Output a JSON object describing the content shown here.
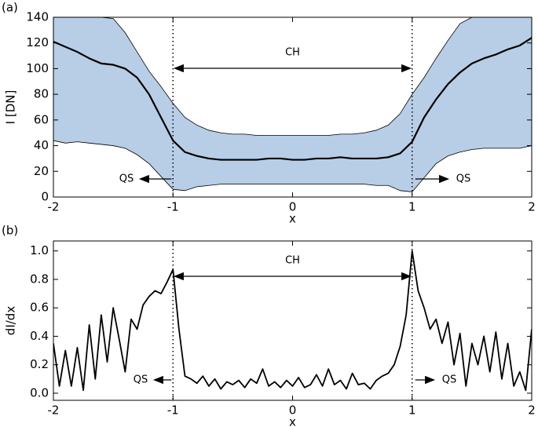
{
  "chart_data": [
    {
      "type": "band-line",
      "panel_label": "(a)",
      "x_label": "x",
      "y_label": "I [DN]",
      "x": [
        -2,
        -1.9,
        -1.8,
        -1.7,
        -1.6,
        -1.5,
        -1.4,
        -1.3,
        -1.2,
        -1.1,
        -1,
        -0.9,
        -0.8,
        -0.7,
        -0.6,
        -0.5,
        -0.4,
        -0.3,
        -0.2,
        -0.1,
        0,
        0.1,
        0.2,
        0.3,
        0.4,
        0.5,
        0.6,
        0.7,
        0.8,
        0.9,
        1,
        1.1,
        1.2,
        1.3,
        1.4,
        1.5,
        1.6,
        1.7,
        1.8,
        1.9,
        2
      ],
      "band": {
        "color": "#b8cde6",
        "upper": [
          140,
          140,
          140,
          140,
          140,
          139,
          128,
          113,
          98,
          86,
          73,
          62,
          56,
          52,
          50,
          49,
          49,
          48,
          48,
          48,
          48,
          48,
          48,
          48,
          49,
          49,
          50,
          52,
          56,
          65,
          80,
          93,
          108,
          122,
          135,
          140,
          140,
          140,
          140,
          140,
          140
        ],
        "lower": [
          44,
          42,
          43,
          42,
          41,
          40,
          38,
          33,
          26,
          16,
          6,
          5,
          8,
          9,
          10,
          10,
          10,
          10,
          10,
          10,
          10,
          10,
          10,
          10,
          10,
          10,
          10,
          9,
          9,
          5,
          4,
          15,
          26,
          32,
          35,
          37,
          38,
          38,
          38,
          38,
          40
        ]
      },
      "series": [
        {
          "color": "#000000",
          "values": [
            121,
            117,
            113,
            108,
            104,
            103,
            100,
            93,
            80,
            62,
            44,
            35,
            32,
            30,
            29,
            29,
            29,
            29,
            30,
            30,
            29,
            29,
            30,
            30,
            31,
            30,
            30,
            30,
            31,
            34,
            43,
            62,
            76,
            88,
            97,
            104,
            108,
            111,
            115,
            118,
            124
          ]
        }
      ],
      "vlines": [
        -1,
        1
      ],
      "annotations": [
        "CH",
        "QS",
        "QS"
      ],
      "xlim": [
        -2,
        2
      ],
      "xticks": [
        -2,
        -1,
        0,
        1,
        2
      ],
      "ylim": [
        0,
        140
      ],
      "yticks": [
        0,
        20,
        40,
        60,
        80,
        100,
        120,
        140
      ]
    },
    {
      "type": "line",
      "panel_label": "(b)",
      "x_label": "x",
      "y_label": "dI/dx",
      "x": [
        -2,
        -1.95,
        -1.9,
        -1.85,
        -1.8,
        -1.75,
        -1.7,
        -1.65,
        -1.6,
        -1.55,
        -1.5,
        -1.45,
        -1.4,
        -1.35,
        -1.3,
        -1.25,
        -1.2,
        -1.15,
        -1.1,
        -1.05,
        -1,
        -0.95,
        -0.9,
        -0.85,
        -0.8,
        -0.75,
        -0.7,
        -0.65,
        -0.6,
        -0.55,
        -0.5,
        -0.45,
        -0.4,
        -0.35,
        -0.3,
        -0.25,
        -0.2,
        -0.15,
        -0.1,
        -0.05,
        0,
        0.05,
        0.1,
        0.15,
        0.2,
        0.25,
        0.3,
        0.35,
        0.4,
        0.45,
        0.5,
        0.55,
        0.6,
        0.65,
        0.7,
        0.75,
        0.8,
        0.85,
        0.9,
        0.95,
        1,
        1.05,
        1.1,
        1.15,
        1.2,
        1.25,
        1.3,
        1.35,
        1.4,
        1.45,
        1.5,
        1.55,
        1.6,
        1.65,
        1.7,
        1.75,
        1.8,
        1.85,
        1.9,
        1.95,
        2
      ],
      "series": [
        {
          "color": "#000000",
          "values": [
            0.35,
            0.05,
            0.3,
            0.05,
            0.32,
            0.02,
            0.48,
            0.1,
            0.55,
            0.22,
            0.6,
            0.38,
            0.15,
            0.52,
            0.45,
            0.62,
            0.68,
            0.72,
            0.7,
            0.78,
            0.87,
            0.45,
            0.12,
            0.1,
            0.07,
            0.12,
            0.05,
            0.1,
            0.03,
            0.08,
            0.06,
            0.09,
            0.04,
            0.1,
            0.07,
            0.17,
            0.05,
            0.08,
            0.04,
            0.09,
            0.05,
            0.11,
            0.04,
            0.06,
            0.13,
            0.05,
            0.17,
            0.06,
            0.09,
            0.03,
            0.14,
            0.06,
            0.07,
            0.03,
            0.09,
            0.12,
            0.14,
            0.2,
            0.33,
            0.55,
            1.0,
            0.72,
            0.6,
            0.45,
            0.52,
            0.35,
            0.5,
            0.2,
            0.42,
            0.05,
            0.35,
            0.2,
            0.4,
            0.15,
            0.43,
            0.1,
            0.35,
            0.05,
            0.15,
            0.02,
            0.45
          ]
        }
      ],
      "vlines": [
        -1,
        1
      ],
      "annotations": [
        "CH",
        "QS",
        "QS"
      ],
      "xlim": [
        -2,
        2
      ],
      "xticks": [
        -2,
        -1,
        0,
        1,
        2
      ],
      "ylim": [
        -0.05,
        1.07
      ],
      "yticks": [
        {
          "value": 0,
          "label": "0.0"
        },
        0.2,
        0.4,
        0.6,
        0.8,
        {
          "value": 1,
          "label": "1.0"
        }
      ]
    }
  ]
}
